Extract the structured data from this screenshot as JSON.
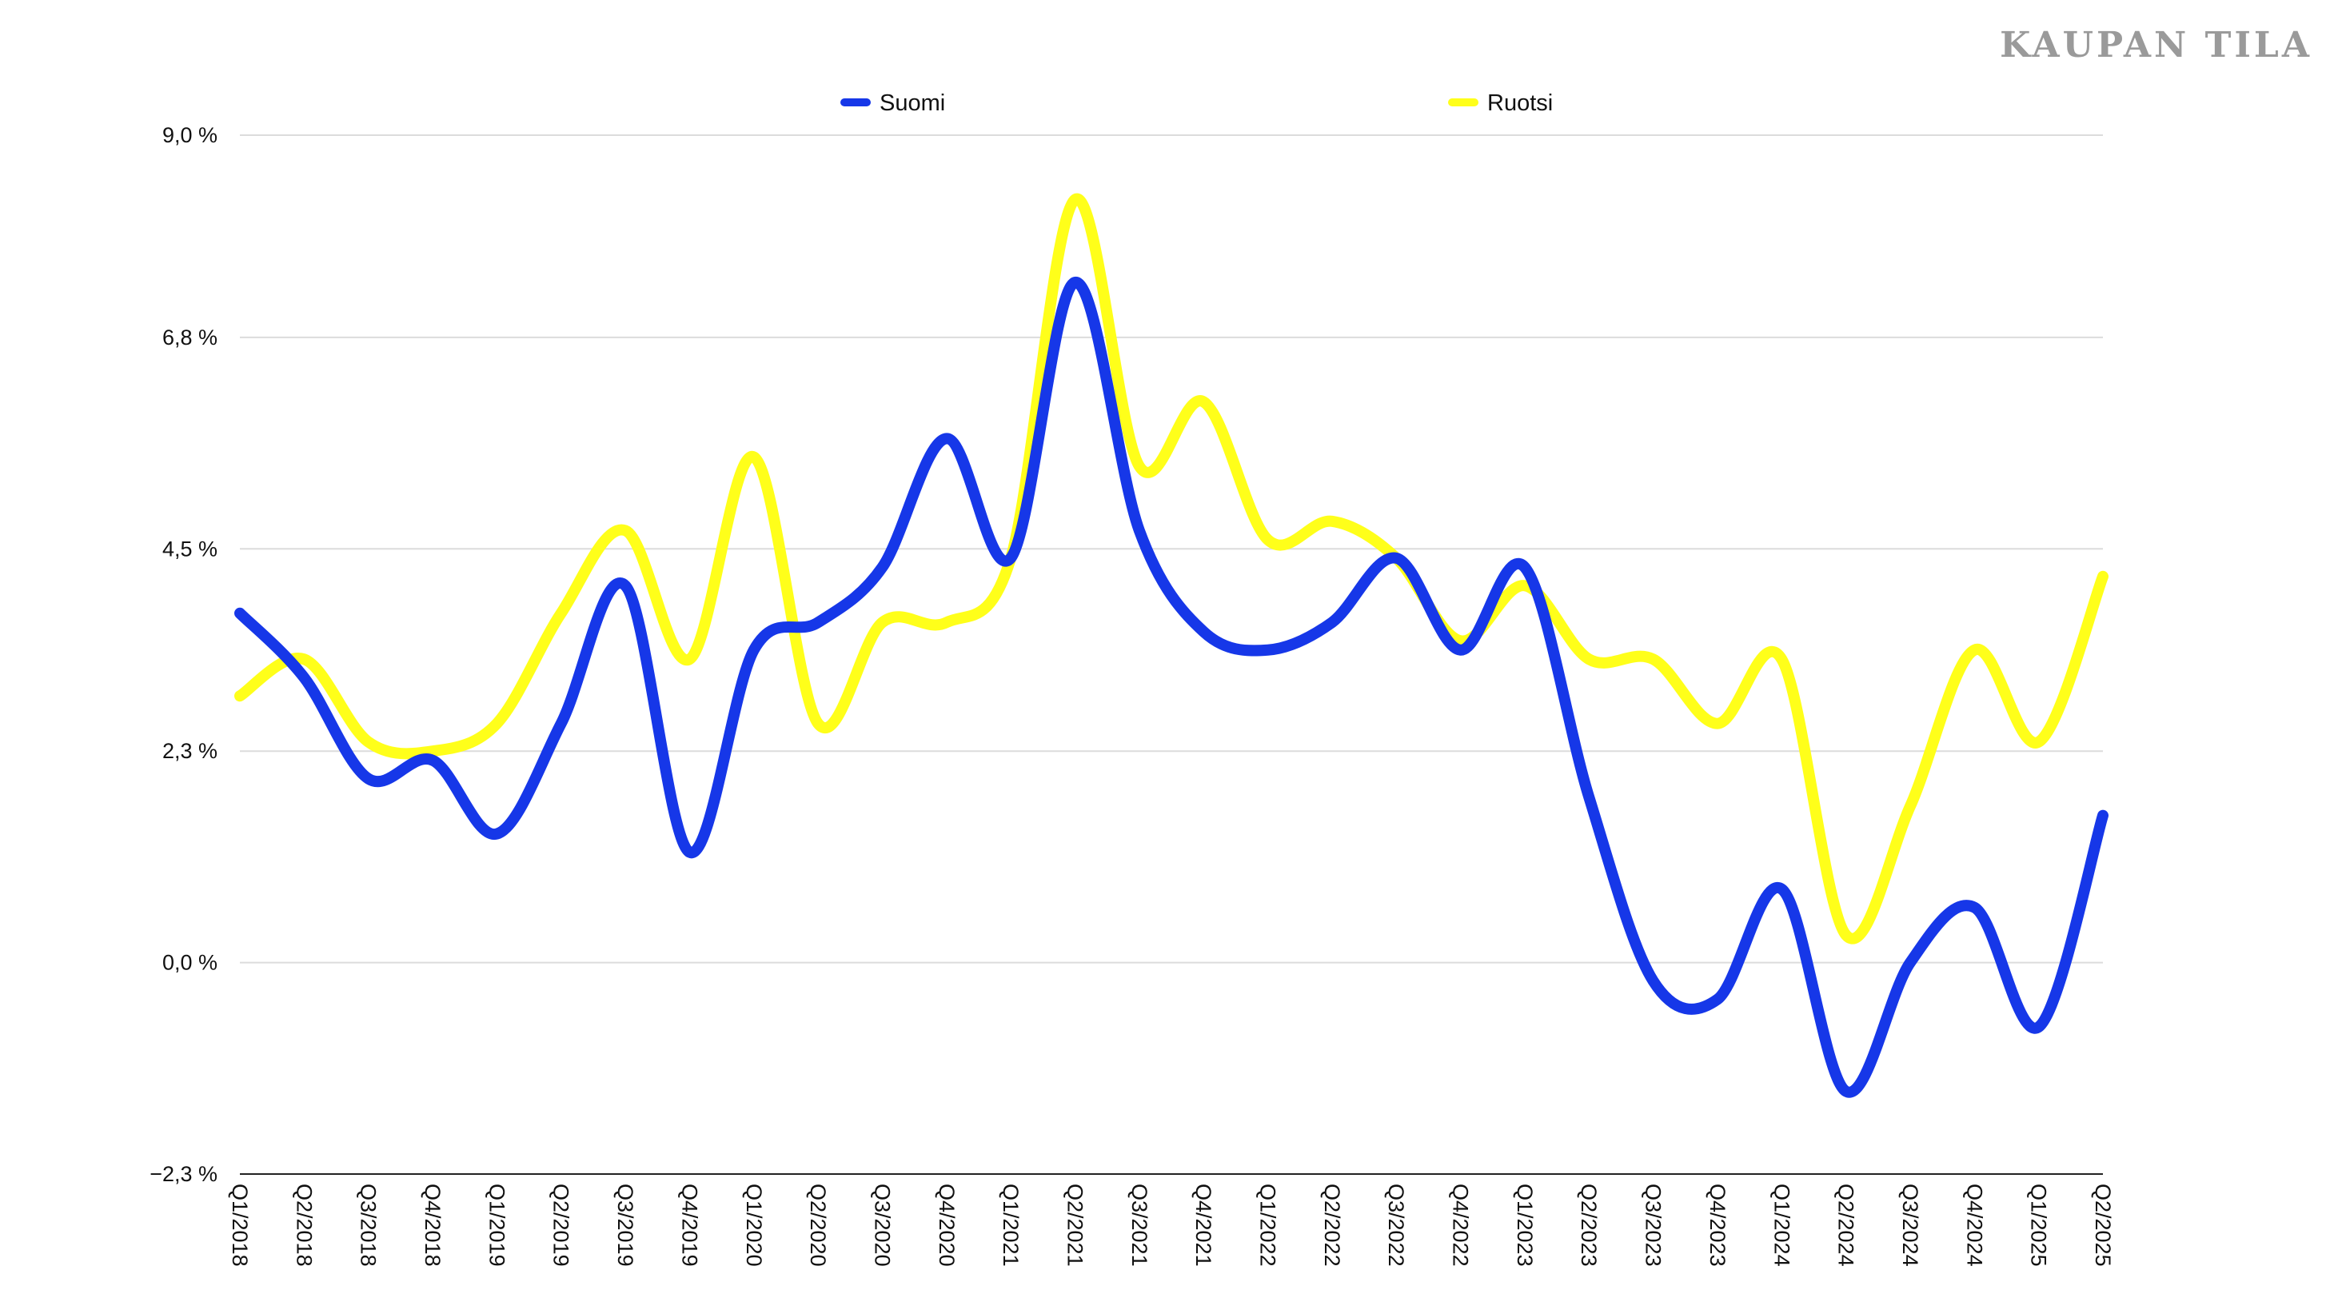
{
  "brand": "KAUPAN TILA",
  "colors": {
    "suomi": "#1637e8",
    "ruotsi": "#ffff1a",
    "grid": "#dcdcdc",
    "text": "#111111"
  },
  "chart_data": {
    "type": "line",
    "title": "",
    "xlabel": "",
    "ylabel": "",
    "categories": [
      "Q1/2018",
      "Q2/2018",
      "Q3/2018",
      "Q4/2018",
      "Q1/2019",
      "Q2/2019",
      "Q3/2019",
      "Q4/2019",
      "Q1/2020",
      "Q2/2020",
      "Q3/2020",
      "Q4/2020",
      "Q1/2021",
      "Q2/2021",
      "Q3/2021",
      "Q4/2021",
      "Q1/2022",
      "Q2/2022",
      "Q3/2022",
      "Q4/2022",
      "Q1/2023",
      "Q2/2023",
      "Q3/2023",
      "Q4/2023",
      "Q1/2024",
      "Q2/2024",
      "Q3/2024",
      "Q4/2024",
      "Q1/2025",
      "Q2/2025"
    ],
    "ylim": [
      -2.3,
      9.0
    ],
    "yticks": [
      -2.3,
      0.0,
      2.3,
      4.5,
      6.8,
      9.0
    ],
    "ytick_labels": [
      "−2,3 %",
      "0,0 %",
      "2,3 %",
      "4,5 %",
      "6,8 %",
      "9,0 %"
    ],
    "grid": true,
    "legend_position": "top-center",
    "series": [
      {
        "name": "Suomi",
        "color": "#1637e8",
        "values": [
          3.8,
          3.1,
          2.0,
          2.2,
          1.4,
          2.6,
          4.1,
          1.2,
          3.4,
          3.7,
          4.3,
          5.7,
          4.4,
          7.4,
          4.7,
          3.6,
          3.4,
          3.7,
          4.4,
          3.4,
          4.3,
          1.8,
          -0.2,
          -0.4,
          0.8,
          -1.4,
          0.0,
          0.6,
          -0.7,
          1.6
        ]
      },
      {
        "name": "Ruotsi",
        "color": "#ffff1a",
        "values": [
          2.9,
          3.3,
          2.4,
          2.3,
          2.6,
          3.8,
          4.7,
          3.3,
          5.5,
          2.6,
          3.7,
          3.7,
          4.4,
          8.3,
          5.4,
          6.1,
          4.6,
          4.8,
          4.4,
          3.5,
          4.1,
          3.3,
          3.3,
          2.6,
          3.3,
          0.3,
          1.7,
          3.4,
          2.4,
          4.2
        ]
      }
    ]
  }
}
